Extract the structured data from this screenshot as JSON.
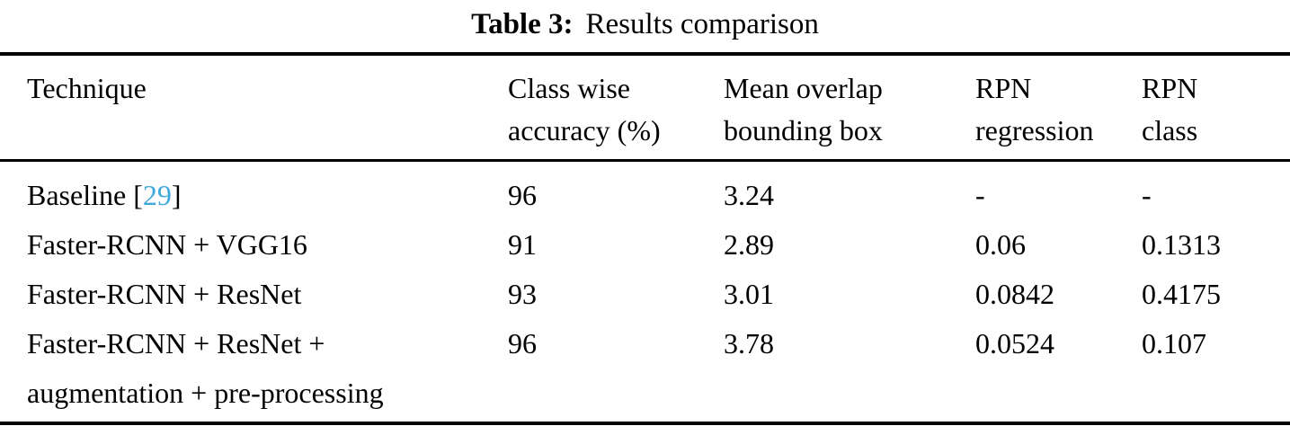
{
  "caption": {
    "label": "Table 3:",
    "text": "Results comparison"
  },
  "colors": {
    "citation": "#3FA8DC",
    "text": "#000000",
    "rule": "#000000"
  },
  "table": {
    "headers": {
      "technique": {
        "line1": "Technique",
        "line2": ""
      },
      "accuracy": {
        "line1": "Class wise",
        "line2": "accuracy (%)"
      },
      "overlap": {
        "line1": "Mean overlap",
        "line2": "bounding box"
      },
      "rpn_regression": {
        "line1": "RPN",
        "line2": "regression"
      },
      "rpn_class": {
        "line1": "RPN",
        "line2": "class"
      }
    },
    "rows": [
      {
        "technique": {
          "pre": "Baseline [",
          "cite": "29",
          "post": "]"
        },
        "accuracy": "96",
        "overlap": "3.24",
        "rpn_regression": "-",
        "rpn_class": "-"
      },
      {
        "technique": {
          "text": "Faster-RCNN + VGG16"
        },
        "accuracy": "91",
        "overlap": "2.89",
        "rpn_regression": "0.06",
        "rpn_class": "0.1313"
      },
      {
        "technique": {
          "text": "Faster-RCNN + ResNet"
        },
        "accuracy": "93",
        "overlap": "3.01",
        "rpn_regression": "0.0842",
        "rpn_class": "0.4175"
      },
      {
        "technique": {
          "line1": "Faster-RCNN + ResNet +",
          "line2": "augmentation + pre-processing"
        },
        "accuracy": "96",
        "overlap": "3.78",
        "rpn_regression": "0.0524",
        "rpn_class": "0.107"
      }
    ]
  }
}
